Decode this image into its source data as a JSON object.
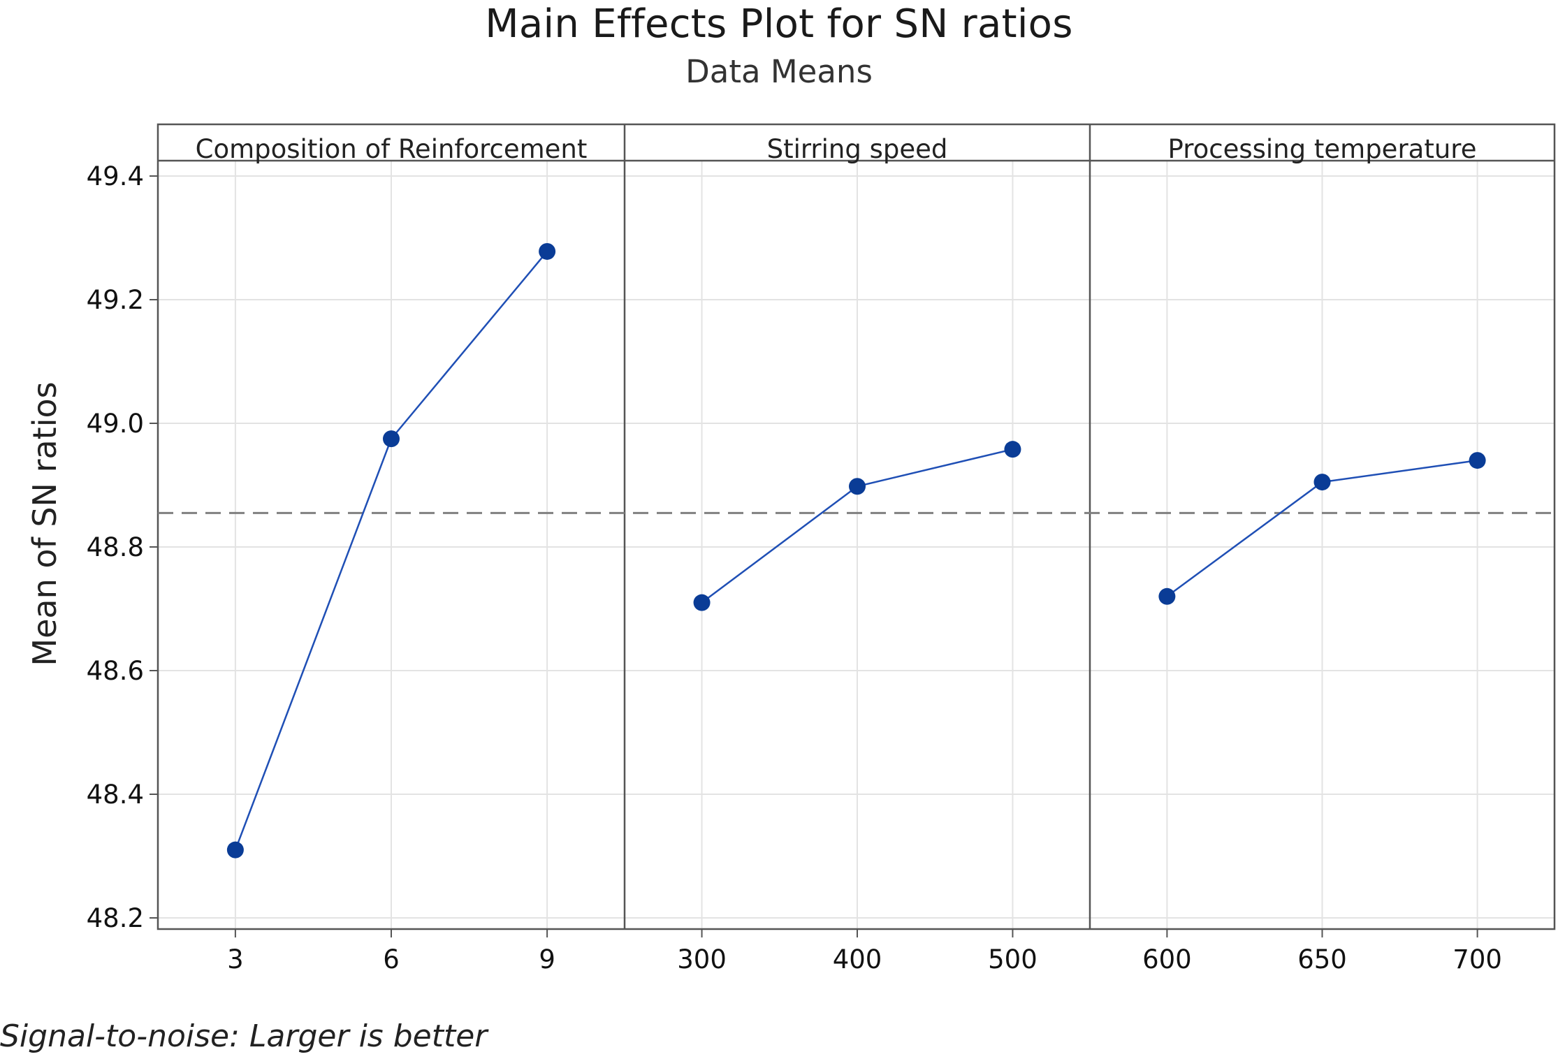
{
  "chart_data": {
    "type": "line",
    "title": "Main Effects Plot for SN ratios",
    "subtitle": "Data Means",
    "ylabel": "Mean of SN ratios",
    "xlabel": "",
    "ylim": [
      48.18,
      49.42
    ],
    "yticks": [
      "48.2",
      "48.4",
      "48.6",
      "48.8",
      "49.0",
      "49.2",
      "49.4"
    ],
    "reference_line": {
      "value": 48.855,
      "style": "dashed"
    },
    "grid": true,
    "marker_color": "#0A3C96",
    "line_color": "#1F4FB5",
    "panels": [
      {
        "label": "Composition of Reinforcement",
        "x": [
          "3",
          "6",
          "9"
        ],
        "y": [
          48.31,
          48.975,
          49.278
        ]
      },
      {
        "label": "Stirring speed",
        "x": [
          "300",
          "400",
          "500"
        ],
        "y": [
          48.71,
          48.898,
          48.958
        ]
      },
      {
        "label": "Processing temperature",
        "x": [
          "600",
          "650",
          "700"
        ],
        "y": [
          48.72,
          48.905,
          48.94
        ]
      }
    ],
    "footnote": "Signal-to-noise: Larger is better"
  }
}
